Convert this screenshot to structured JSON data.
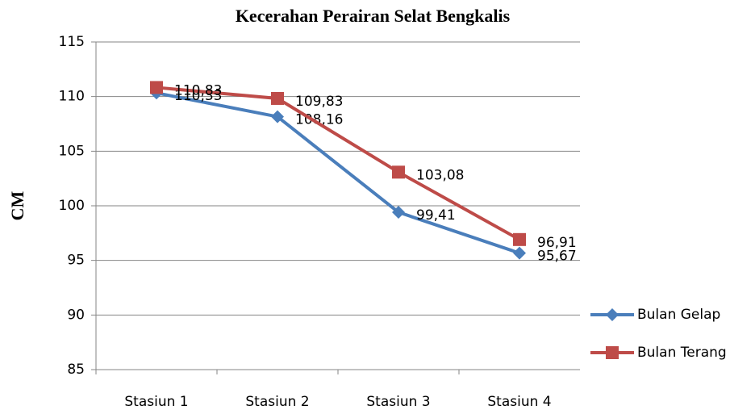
{
  "chart_data": {
    "type": "line",
    "title": "Kecerahan Perairan Selat Bengkalis",
    "y_label": "CM",
    "categories": [
      "Stasiun 1",
      "Stasiun 2",
      "Stasiun 3",
      "Stasiun 4"
    ],
    "series": [
      {
        "name": "Bulan Gelap",
        "color": "#4a7ebb",
        "marker": "diamond",
        "values": [
          110.33,
          108.16,
          99.41,
          95.67
        ],
        "value_labels": [
          "110,33",
          "108,16",
          "99,41",
          "95,67"
        ]
      },
      {
        "name": "Bulan Terang",
        "color": "#be4b48",
        "marker": "square",
        "values": [
          110.83,
          109.83,
          103.08,
          96.91
        ],
        "value_labels": [
          "110,83",
          "109,83",
          "103,08",
          "96,91"
        ]
      }
    ],
    "ylim": [
      85,
      115
    ],
    "yticks": [
      85,
      90,
      95,
      100,
      105,
      110,
      115
    ],
    "grid": true,
    "legend": "right"
  }
}
